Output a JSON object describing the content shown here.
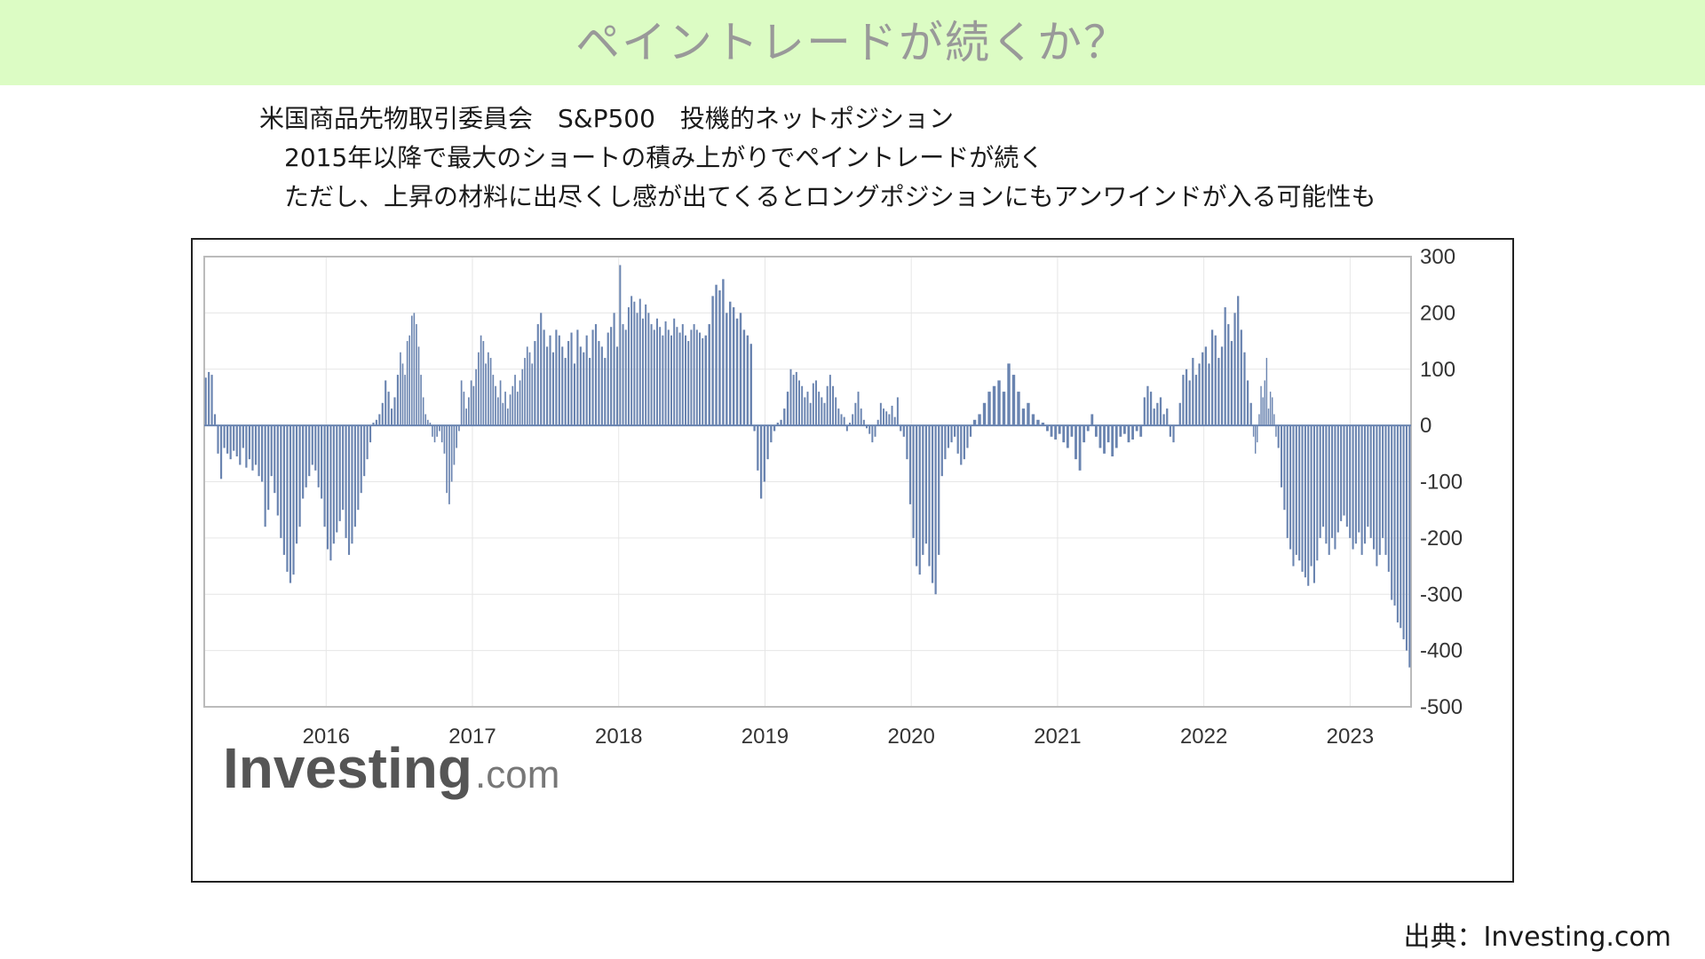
{
  "page": {
    "title": "ペイントレードが続くか？",
    "description": [
      "米国商品先物取引委員会　S&P500　投機的ネットポジション",
      "　2015年以降で最大のショートの積み上がりでペイントレードが続く",
      "　ただし、上昇の材料に出尽くし感が出てくるとロングポジションにもアンワインドが入る可能性も"
    ],
    "source": "出典：Investing.com"
  },
  "chart_data": {
    "type": "bar",
    "title": "",
    "xlabel": "",
    "ylabel": "",
    "ylim": [
      -500,
      300
    ],
    "y_ticks": [
      "300",
      "200",
      "100",
      "0",
      "-100",
      "-200",
      "-300",
      "-400",
      "-500"
    ],
    "x_tick_labels": [
      "2016",
      "2017",
      "2018",
      "2019",
      "2020",
      "2021",
      "2022",
      "2023"
    ],
    "x_range": [
      "2015-03",
      "2023-06"
    ],
    "grid": true,
    "y_axis_position": "right",
    "bar_color": "#6a84b0",
    "watermark": "Investing.com",
    "series": [
      {
        "segments": [
          {
            "from": "2015-03",
            "to": "2015-04",
            "values": [
              85,
              95,
              90,
              20
            ]
          },
          {
            "from": "2015-04",
            "to": "2015-12",
            "values": [
              -50,
              -95,
              -40,
              -50,
              -60,
              -45,
              -55,
              -70,
              -40,
              -75,
              -60,
              -80,
              -70,
              -90,
              -100,
              -180,
              -150,
              -90,
              -120,
              -160,
              -200,
              -230,
              -260,
              -280,
              -265,
              -210,
              -180,
              -130,
              -110,
              -90,
              -70
            ]
          },
          {
            "from": "2015-12",
            "to": "2016-07",
            "values": [
              -80,
              -110,
              -130,
              -180,
              -220,
              -240,
              -210,
              -190,
              -170,
              -150,
              -200,
              -230,
              -210,
              -180,
              -150,
              -120,
              -90,
              -60,
              -30,
              5,
              10,
              20,
              40,
              80,
              60,
              30,
              50,
              90
            ]
          },
          {
            "from": "2016-07",
            "to": "2016-10",
            "values": [
              130,
              110,
              90,
              150,
              160,
              195,
              200,
              180,
              140,
              90,
              50,
              20,
              10,
              5,
              -20,
              -30
            ]
          },
          {
            "from": "2016-10",
            "to": "2016-12",
            "values": [
              -20,
              -10,
              -30,
              -50,
              -120,
              -140,
              -100,
              -70,
              -40,
              -10
            ]
          },
          {
            "from": "2016-12",
            "to": "2017-06",
            "values": [
              80,
              60,
              30,
              50,
              80,
              70,
              100,
              130,
              160,
              150,
              110,
              130,
              120,
              90,
              70,
              50,
              80,
              40,
              60,
              30,
              55,
              70,
              90,
              60,
              80,
              100,
              120,
              140,
              130,
              110
            ]
          },
          {
            "from": "2017-06",
            "to": "2018-01",
            "values": [
              150,
              180,
              200,
              170,
              140,
              160,
              130,
              170,
              160,
              140,
              120,
              150,
              165,
              110,
              170,
              140,
              130,
              160,
              120,
              170,
              180,
              150,
              140,
              120,
              165,
              175,
              200,
              140
            ]
          },
          {
            "from": "2018-01",
            "to": "2018-08",
            "values": [
              285,
              180,
              170,
              210,
              230,
              220,
              200,
              225,
              190,
              215,
              200,
              180,
              170,
              190,
              175,
              160,
              185,
              170,
              160,
              190,
              175,
              165,
              180,
              160,
              150,
              170,
              180,
              170,
              165,
              155
            ]
          },
          {
            "from": "2018-08",
            "to": "2018-12",
            "values": [
              160,
              180,
              230,
              250,
              240,
              260,
              200,
              220,
              210,
              190,
              200,
              170,
              160,
              145
            ]
          },
          {
            "from": "2018-12",
            "to": "2019-03",
            "values": [
              -10,
              -80,
              -130,
              -100,
              -60,
              -30,
              -10,
              5,
              10,
              30,
              60
            ]
          },
          {
            "from": "2019-03",
            "to": "2019-12",
            "values": [
              100,
              90,
              95,
              80,
              70,
              50,
              60,
              40,
              75,
              80,
              60,
              50,
              40,
              70,
              90,
              70,
              50,
              30,
              20,
              15,
              -10,
              5,
              20,
              40,
              60,
              30,
              10,
              -5,
              -15,
              -30,
              -20,
              10,
              40,
              30,
              25,
              20,
              35,
              15,
              50
            ]
          },
          {
            "from": "2019-12",
            "to": "2020-06",
            "values": [
              -10,
              -20,
              -60,
              -140,
              -200,
              -250,
              -265,
              -230,
              -210,
              -250,
              -280,
              -300,
              -230,
              -90,
              -60,
              -40,
              -30,
              -20,
              -50,
              -70,
              -60,
              -40,
              -20
            ]
          },
          {
            "from": "2020-06",
            "to": "2020-12",
            "values": [
              10,
              20,
              40,
              60,
              70,
              80,
              60,
              110,
              90,
              60,
              30,
              40,
              20,
              10,
              5
            ]
          },
          {
            "from": "2020-12",
            "to": "2021-08",
            "values": [
              -10,
              -20,
              -25,
              -15,
              -30,
              -40,
              -20,
              -60,
              -80,
              -30,
              -10,
              20,
              -20,
              -40,
              -50,
              -30,
              -55,
              -40,
              -20,
              -15,
              -30,
              -25,
              -10,
              -20
            ]
          },
          {
            "from": "2021-08",
            "to": "2022-05",
            "values": [
              50,
              70,
              60,
              30,
              40,
              50,
              20,
              30,
              -20,
              -30,
              0,
              40,
              90,
              100,
              80,
              120,
              90,
              110,
              130,
              140,
              110,
              170,
              160,
              120,
              140,
              210,
              180,
              150,
              200,
              230,
              170,
              130,
              80,
              40
            ]
          },
          {
            "from": "2022-05",
            "to": "2022-07",
            "values": [
              -20,
              -50,
              -30,
              20,
              70,
              50,
              80,
              120,
              30,
              60,
              50,
              20,
              -20
            ]
          },
          {
            "from": "2022-07",
            "to": "2023-06",
            "values": [
              -40,
              -110,
              -150,
              -200,
              -220,
              -250,
              -230,
              -240,
              -260,
              -270,
              -285,
              -250,
              -280,
              -240,
              -200,
              -180,
              -210,
              -230,
              -200,
              -220,
              -190,
              -170,
              -160,
              -180,
              -200,
              -220,
              -210,
              -190,
              -230,
              -210,
              -180,
              -200,
              -220,
              -250,
              -230,
              -200,
              -230,
              -260,
              -310,
              -320,
              -350,
              -360,
              -380,
              -400,
              -430
            ]
          }
        ]
      }
    ]
  }
}
